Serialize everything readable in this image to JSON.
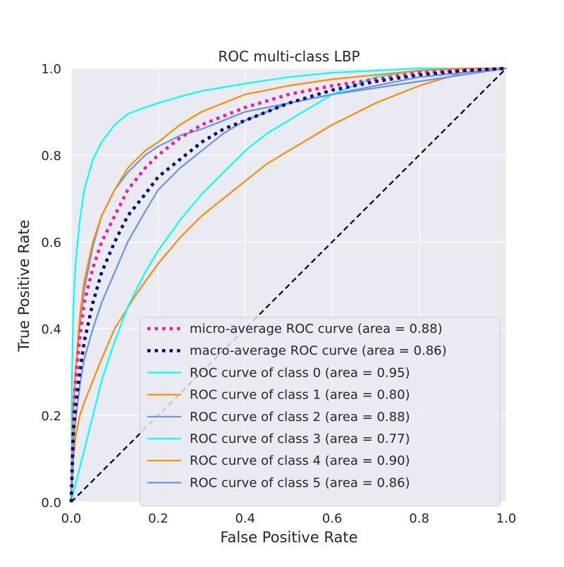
{
  "chart_data": {
    "type": "line",
    "title": "ROC multi-class LBP",
    "xlabel": "False Positive Rate",
    "ylabel": "True Positive Rate",
    "xlim": [
      0.0,
      1.0
    ],
    "ylim": [
      0.0,
      1.0
    ],
    "xticks": [
      "0.0",
      "0.2",
      "0.4",
      "0.6",
      "0.8",
      "1.0"
    ],
    "yticks": [
      "0.0",
      "0.2",
      "0.4",
      "0.6",
      "0.8",
      "1.0"
    ],
    "grid": true,
    "legend_position": "lower right",
    "background": "#eaeaf2",
    "series": [
      {
        "name": "micro-average ROC curve (area = 0.88)",
        "color": "#ff1493",
        "style": "dotted-thick",
        "x": [
          0,
          0.005,
          0.01,
          0.02,
          0.03,
          0.05,
          0.07,
          0.1,
          0.13,
          0.17,
          0.2,
          0.25,
          0.3,
          0.35,
          0.4,
          0.5,
          0.6,
          0.7,
          0.8,
          0.9,
          1.0
        ],
        "y": [
          0,
          0.2,
          0.28,
          0.38,
          0.46,
          0.54,
          0.6,
          0.66,
          0.72,
          0.77,
          0.8,
          0.84,
          0.87,
          0.89,
          0.91,
          0.94,
          0.96,
          0.975,
          0.99,
          0.995,
          1.0
        ]
      },
      {
        "name": "macro-average ROC curve (area = 0.86)",
        "color": "#000080",
        "style": "dotted-thick",
        "x": [
          0,
          0.005,
          0.01,
          0.02,
          0.03,
          0.05,
          0.07,
          0.1,
          0.13,
          0.17,
          0.2,
          0.25,
          0.3,
          0.35,
          0.4,
          0.5,
          0.6,
          0.7,
          0.8,
          0.9,
          1.0
        ],
        "y": [
          0,
          0.16,
          0.22,
          0.3,
          0.37,
          0.46,
          0.53,
          0.6,
          0.66,
          0.71,
          0.75,
          0.79,
          0.83,
          0.86,
          0.88,
          0.92,
          0.95,
          0.97,
          0.985,
          0.995,
          1.0
        ]
      },
      {
        "name": "ROC curve of class 0 (area = 0.95)",
        "color": "#00ffff",
        "style": "solid",
        "x": [
          0,
          0.002,
          0.005,
          0.01,
          0.02,
          0.03,
          0.05,
          0.07,
          0.1,
          0.13,
          0.17,
          0.2,
          0.25,
          0.3,
          0.4,
          0.5,
          0.6,
          0.7,
          0.8,
          0.9,
          1.0
        ],
        "y": [
          0,
          0.3,
          0.45,
          0.55,
          0.65,
          0.72,
          0.79,
          0.83,
          0.87,
          0.895,
          0.91,
          0.92,
          0.935,
          0.948,
          0.965,
          0.98,
          0.99,
          0.995,
          1.0,
          1.0,
          1.0
        ]
      },
      {
        "name": "ROC curve of class 1 (area = 0.80)",
        "color": "#ff8c00",
        "style": "solid",
        "x": [
          0,
          0.005,
          0.01,
          0.02,
          0.03,
          0.05,
          0.07,
          0.1,
          0.15,
          0.2,
          0.25,
          0.3,
          0.35,
          0.4,
          0.45,
          0.5,
          0.55,
          0.6,
          0.7,
          0.8,
          0.9,
          1.0
        ],
        "y": [
          0,
          0.1,
          0.15,
          0.2,
          0.23,
          0.28,
          0.33,
          0.4,
          0.48,
          0.55,
          0.61,
          0.66,
          0.7,
          0.74,
          0.78,
          0.81,
          0.84,
          0.87,
          0.92,
          0.96,
          0.99,
          1.0
        ]
      },
      {
        "name": "ROC curve of class 2 (area = 0.88)",
        "color": "#6495ed",
        "style": "solid",
        "x": [
          0,
          0.005,
          0.01,
          0.02,
          0.03,
          0.05,
          0.07,
          0.1,
          0.13,
          0.17,
          0.2,
          0.25,
          0.3,
          0.35,
          0.4,
          0.45,
          0.5,
          0.6,
          0.7,
          0.8,
          0.9,
          1.0
        ],
        "y": [
          0,
          0.22,
          0.3,
          0.41,
          0.49,
          0.59,
          0.66,
          0.72,
          0.76,
          0.8,
          0.82,
          0.845,
          0.86,
          0.88,
          0.9,
          0.91,
          0.92,
          0.94,
          0.96,
          0.98,
          0.99,
          1.0
        ]
      },
      {
        "name": "ROC curve of class 3 (area = 0.77)",
        "color": "#00ffff",
        "style": "solid",
        "x": [
          0,
          0.01,
          0.02,
          0.03,
          0.05,
          0.07,
          0.1,
          0.13,
          0.17,
          0.2,
          0.25,
          0.3,
          0.35,
          0.4,
          0.45,
          0.5,
          0.55,
          0.6,
          0.65,
          0.7,
          0.8,
          0.9,
          1.0
        ],
        "y": [
          0,
          0.04,
          0.08,
          0.12,
          0.2,
          0.28,
          0.37,
          0.45,
          0.53,
          0.58,
          0.65,
          0.71,
          0.76,
          0.81,
          0.85,
          0.88,
          0.91,
          0.94,
          0.96,
          0.98,
          0.995,
          1.0,
          1.0
        ]
      },
      {
        "name": "ROC curve of class 4 (area = 0.90)",
        "color": "#ff8c00",
        "style": "solid",
        "x": [
          0,
          0.005,
          0.01,
          0.02,
          0.03,
          0.05,
          0.07,
          0.1,
          0.13,
          0.17,
          0.2,
          0.25,
          0.3,
          0.35,
          0.4,
          0.45,
          0.5,
          0.6,
          0.7,
          0.8,
          0.9,
          1.0
        ],
        "y": [
          0,
          0.2,
          0.3,
          0.43,
          0.51,
          0.6,
          0.66,
          0.72,
          0.77,
          0.81,
          0.83,
          0.87,
          0.9,
          0.92,
          0.94,
          0.95,
          0.96,
          0.975,
          0.985,
          0.995,
          1.0,
          1.0
        ]
      },
      {
        "name": "ROC curve of class 5 (area = 0.86)",
        "color": "#6495ed",
        "style": "solid",
        "x": [
          0,
          0.005,
          0.01,
          0.02,
          0.03,
          0.05,
          0.07,
          0.1,
          0.13,
          0.17,
          0.2,
          0.25,
          0.3,
          0.35,
          0.4,
          0.45,
          0.5,
          0.55,
          0.6,
          0.7,
          0.8,
          0.9,
          1.0
        ],
        "y": [
          0,
          0.14,
          0.19,
          0.27,
          0.33,
          0.4,
          0.46,
          0.53,
          0.6,
          0.67,
          0.72,
          0.77,
          0.81,
          0.85,
          0.88,
          0.9,
          0.92,
          0.93,
          0.94,
          0.955,
          0.97,
          0.985,
          1.0
        ]
      }
    ],
    "reference_line": {
      "x": [
        0,
        1
      ],
      "y": [
        0,
        1
      ],
      "color": "#000000",
      "style": "dashed"
    }
  }
}
